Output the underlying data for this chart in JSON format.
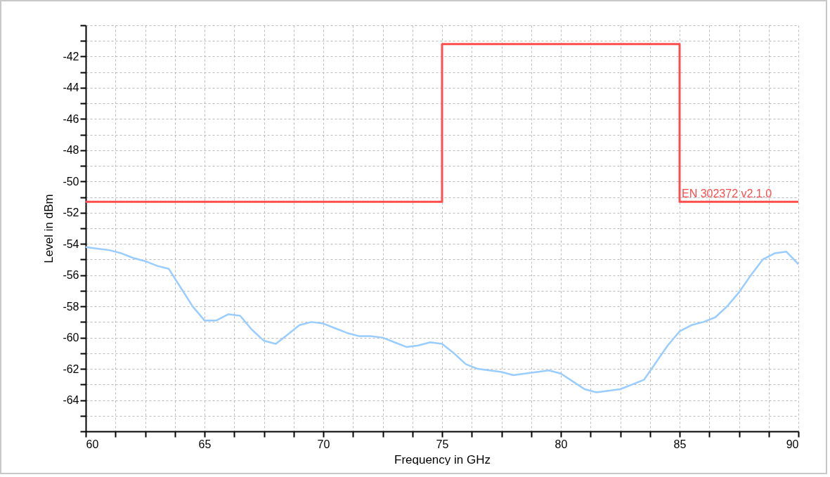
{
  "chart_data": {
    "type": "line",
    "xlabel": "Frequency in GHz",
    "ylabel": "Level in dBm",
    "x": [
      60,
      60.5,
      61,
      61.5,
      62,
      62.5,
      63,
      63.5,
      64,
      64.5,
      65,
      65.5,
      66,
      66.5,
      67,
      67.5,
      68,
      68.5,
      69,
      69.5,
      70,
      70.5,
      71,
      71.5,
      72,
      72.5,
      73,
      73.5,
      74,
      74.5,
      75,
      75.5,
      76,
      76.5,
      77,
      77.5,
      78,
      78.5,
      79,
      79.5,
      80,
      80.5,
      81,
      81.5,
      82,
      82.5,
      83,
      83.5,
      84,
      84.5,
      85,
      85.5,
      86,
      86.5,
      87,
      87.5,
      88,
      88.5,
      89,
      89.5,
      90
    ],
    "series": [
      {
        "color": "#99ccff",
        "values": [
          -54.2,
          -54.3,
          -54.4,
          -54.6,
          -54.9,
          -55.1,
          -55.4,
          -55.6,
          -56.8,
          -58.0,
          -58.9,
          -58.9,
          -58.5,
          -58.6,
          -59.5,
          -60.2,
          -60.4,
          -59.8,
          -59.2,
          -59.0,
          -59.1,
          -59.4,
          -59.7,
          -59.9,
          -59.9,
          -60.0,
          -60.3,
          -60.6,
          -60.5,
          -60.3,
          -60.4,
          -61.0,
          -61.7,
          -62.0,
          -62.1,
          -62.2,
          -62.4,
          -62.3,
          -62.2,
          -62.1,
          -62.3,
          -62.8,
          -63.3,
          -63.5,
          -63.4,
          -63.3,
          -63.0,
          -62.7,
          -61.6,
          -60.5,
          -59.6,
          -59.2,
          -59.0,
          -58.7,
          -58.0,
          -57.1,
          -56.0,
          -55.0,
          -54.6,
          -54.5,
          -55.3
        ]
      },
      {
        "type": "step",
        "color": "#ff4d4d",
        "x": [
          60,
          75,
          85,
          90
        ],
        "values": [
          -51.3,
          -41.2,
          -51.3,
          -51.3
        ]
      }
    ],
    "annotations": [
      {
        "text": "EN  302372  v2.1.0",
        "x": 85,
        "y": -51.3
      }
    ],
    "xlim": [
      60,
      90
    ],
    "ylim": [
      -66,
      -40
    ],
    "xticks": [
      60,
      {
        "value": 61.25,
        "label": null
      },
      {
        "value": 62.5,
        "label": null
      },
      {
        "value": 63.75,
        "label": null
      },
      65,
      {
        "value": 66.25,
        "label": null
      },
      {
        "value": 67.5,
        "label": null
      },
      {
        "value": 68.75,
        "label": null
      },
      70,
      {
        "value": 71.25,
        "label": null
      },
      {
        "value": 72.5,
        "label": null
      },
      {
        "value": 73.75,
        "label": null
      },
      75,
      {
        "value": 76.25,
        "label": null
      },
      {
        "value": 77.5,
        "label": null
      },
      {
        "value": 78.75,
        "label": null
      },
      80,
      {
        "value": 81.25,
        "label": null
      },
      {
        "value": 82.5,
        "label": null
      },
      {
        "value": 83.75,
        "label": null
      },
      85,
      {
        "value": 86.25,
        "label": null
      },
      {
        "value": 87.5,
        "label": null
      },
      {
        "value": 88.75,
        "label": null
      },
      90
    ],
    "yticks": [
      {
        "value": -66,
        "label": null
      },
      {
        "value": -65,
        "label": null
      },
      -64,
      {
        "value": -63,
        "label": null
      },
      -62,
      {
        "value": -61,
        "label": null
      },
      -60,
      {
        "value": -59,
        "label": null
      },
      -58,
      {
        "value": -57,
        "label": null
      },
      -56,
      {
        "value": -55,
        "label": null
      },
      -54,
      {
        "value": -53,
        "label": null
      },
      -52,
      {
        "value": -51,
        "label": null
      },
      -50,
      {
        "value": -49,
        "label": null
      },
      -48,
      {
        "value": -47,
        "label": null
      },
      -46,
      {
        "value": -45,
        "label": null
      },
      -44,
      {
        "value": -43,
        "label": null
      },
      -42,
      {
        "value": -41,
        "label": null
      },
      {
        "value": -40,
        "label": null
      }
    ],
    "grid": true
  }
}
